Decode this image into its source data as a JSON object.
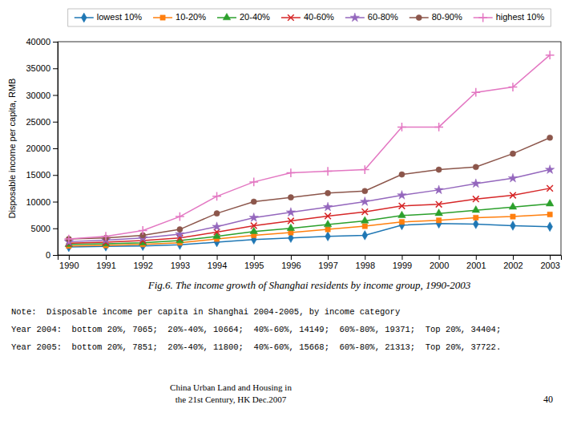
{
  "chart_data": {
    "type": "line",
    "title": "Fig.6. The income growth of Shanghai residents by income group, 1990-2003",
    "ylabel": "Disposable income per capita, RMB",
    "x": [
      1990,
      1991,
      1992,
      1993,
      1994,
      1995,
      1996,
      1997,
      1998,
      1999,
      2000,
      2001,
      2002,
      2003
    ],
    "series": [
      {
        "name": "lowest 10%",
        "marker": "diamond",
        "values": [
          1500,
          1600,
          1700,
          1900,
          2400,
          2900,
          3200,
          3500,
          3700,
          5600,
          5900,
          5800,
          5500,
          5300
        ]
      },
      {
        "name": "10-20%",
        "marker": "square",
        "values": [
          1700,
          1800,
          2000,
          2300,
          3000,
          3700,
          4200,
          4800,
          5400,
          6200,
          6500,
          7000,
          7200,
          7600
        ]
      },
      {
        "name": "20-40%",
        "marker": "triangle",
        "values": [
          2000,
          2100,
          2300,
          2700,
          3500,
          4400,
          5000,
          5700,
          6400,
          7400,
          7800,
          8400,
          9000,
          9600
        ]
      },
      {
        "name": "40-60%",
        "marker": "x",
        "values": [
          2200,
          2400,
          2700,
          3200,
          4300,
          5500,
          6400,
          7300,
          8100,
          9200,
          9500,
          10500,
          11200,
          12500
        ]
      },
      {
        "name": "60-80%",
        "marker": "star",
        "values": [
          2500,
          2800,
          3200,
          3900,
          5300,
          7000,
          8000,
          9000,
          10000,
          11200,
          12200,
          13400,
          14400,
          16000
        ]
      },
      {
        "name": "80-90%",
        "marker": "circle",
        "values": [
          3000,
          3200,
          3700,
          4800,
          7800,
          10000,
          10800,
          11600,
          12000,
          15100,
          16000,
          16500,
          19000,
          22000
        ]
      },
      {
        "name": "highest 10%",
        "marker": "plus",
        "values": [
          3000,
          3500,
          4600,
          7200,
          11000,
          13700,
          15400,
          15700,
          16000,
          24000,
          24000,
          30500,
          31500,
          37500
        ]
      }
    ],
    "xlim": [
      1989.7,
      2003.3
    ],
    "xticks": [
      1990,
      1991,
      1992,
      1993,
      1994,
      1995,
      1996,
      1997,
      1998,
      1999,
      2000,
      2001,
      2002,
      2003
    ],
    "ylim": [
      0,
      40000
    ],
    "yticks": [
      0,
      5000,
      10000,
      15000,
      20000,
      25000,
      30000,
      35000,
      40000
    ],
    "grid": false,
    "legend": "top",
    "annotations": [
      "Note:  Disposable income per capita in Shanghai 2004-2005, by income category",
      "Year 2004:  bottom 20%, 7065;  20%-40%, 10664;  40%-60%, 14149;  60%-80%, 19371;  Top 20%, 34404;",
      "Year 2005:  bottom 20%, 7851;  20%-40%, 11800;  40%-60%, 15668;  60%-80%, 21313;  Top 20%, 37722.",
      "China Urban Land and Housing in\nthe 21st Century, HK Dec.2007",
      "40"
    ]
  }
}
